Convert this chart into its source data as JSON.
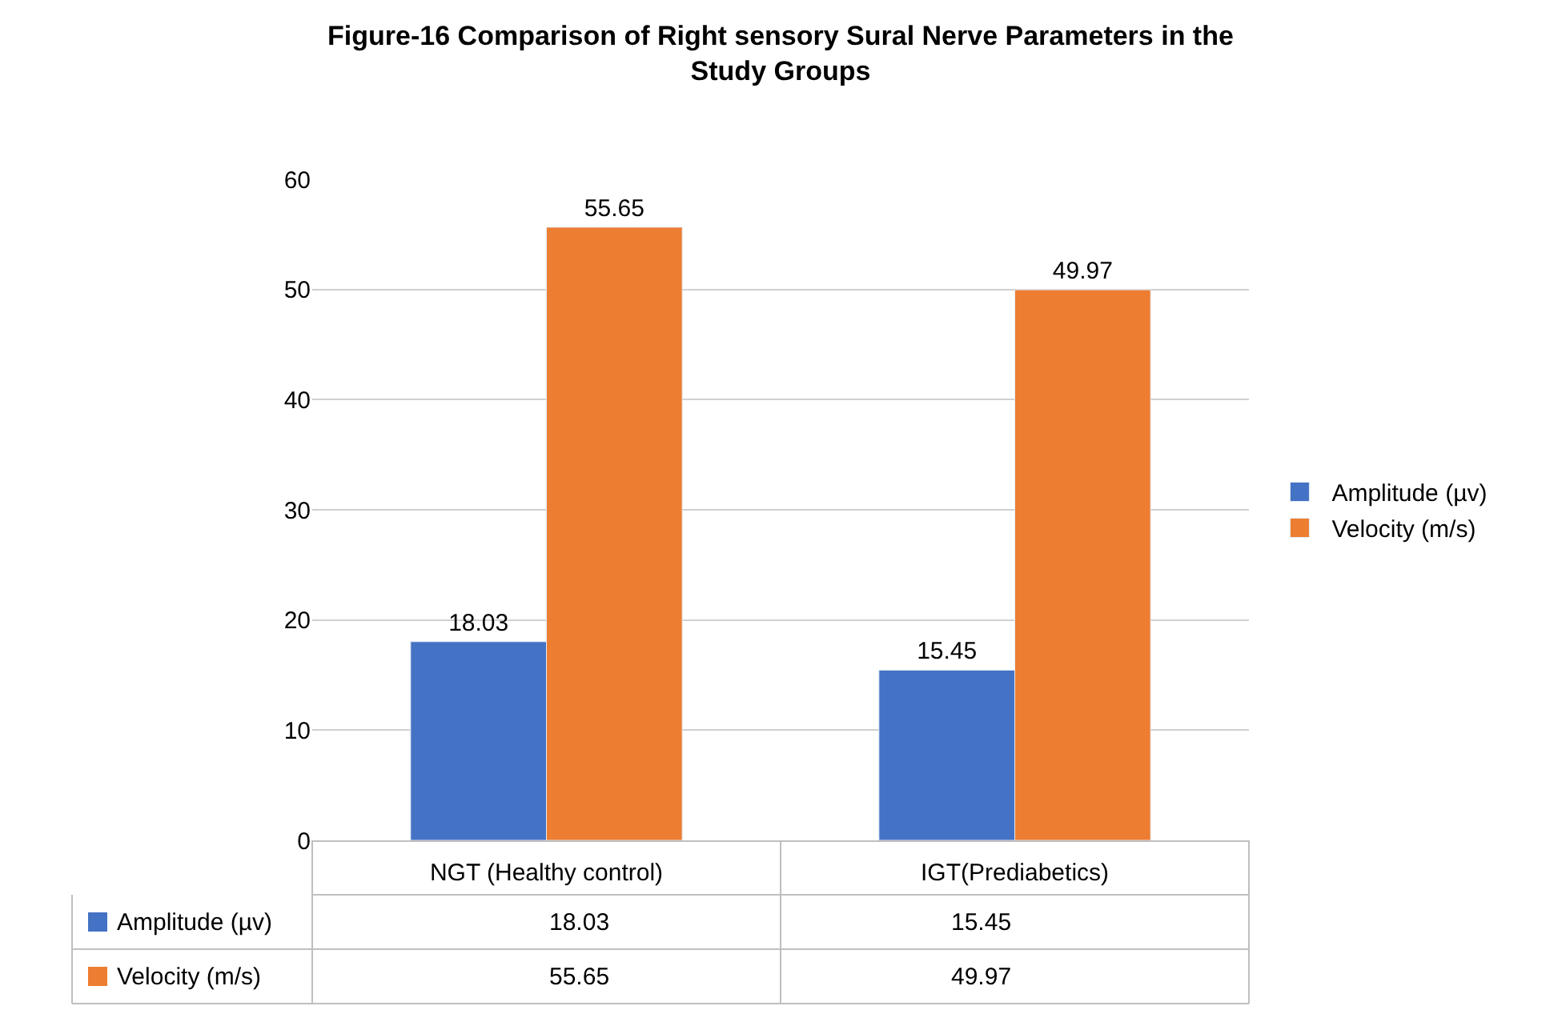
{
  "chart_data": {
    "type": "bar",
    "title": "Figure-16 Comparison of Right sensory Sural Nerve Parameters in the Study Groups",
    "categories": [
      "NGT (Healthy control)",
      "IGT(Prediabetics)"
    ],
    "series": [
      {
        "name": "Amplitude (µv)",
        "color": "#4472c4",
        "values": [
          18.03,
          15.45
        ]
      },
      {
        "name": "Velocity (m/s)",
        "color": "#ed7d31",
        "values": [
          55.65,
          49.97
        ]
      }
    ],
    "annotations": [
      "18.03",
      "15.45",
      "55.65",
      "49.97"
    ],
    "ylim": [
      0,
      60
    ],
    "yticks": [
      0,
      10,
      20,
      30,
      40,
      50,
      60
    ],
    "grid": "y",
    "legend": "right",
    "data_labels": true
  }
}
